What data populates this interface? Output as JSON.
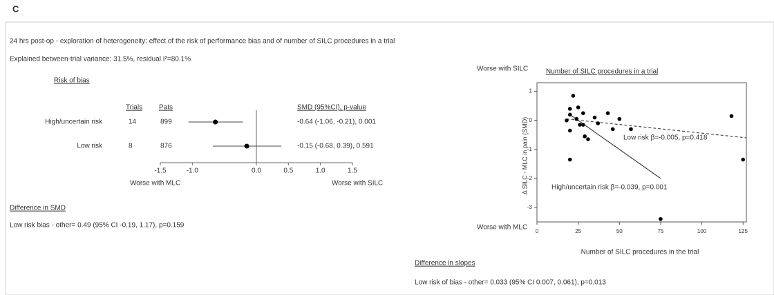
{
  "panel_label": "C",
  "heading": "24 hrs post-op - exploration of heterogeneity: effect of the risk of performance bias and of number of SILC procedures in a trial",
  "explained": "Explained between-trial variance: 31.5%, residual I²=80.1%",
  "difference_smd": {
    "title": "Difference in SMD",
    "text": "Low risk bias - other= 0.49 (95% CI -0.19, 1.17), p=0.159"
  },
  "difference_slopes": {
    "title": "Difference in slopes",
    "text": "Low risk of  bias - other= 0.033 (95% CI 0.007, 0.061), p=0.013"
  },
  "chart_data": [
    {
      "type": "forest",
      "title": "Risk of bias",
      "columns": [
        "Trials",
        "Pats"
      ],
      "result_header": "SMD (95%CI), p-value",
      "categories": [
        "High/uncertain risk",
        "Low risk"
      ],
      "trials": [
        14,
        8
      ],
      "pats": [
        899,
        876
      ],
      "values": [
        -0.64,
        -0.15
      ],
      "ci_low": [
        -1.06,
        -0.68
      ],
      "ci_high": [
        -0.21,
        0.39
      ],
      "value_labels": [
        "-0.64 (-1.06, -0.21), 0.001",
        "-0.15 (-0.68, 0.39), 0.591"
      ],
      "xlim": [
        -1.5,
        1.5
      ],
      "xticks": [
        -1.5,
        {
          "value": -1,
          "label": "-1.0"
        },
        {
          "value": 0,
          "label": "0.0"
        },
        0.5,
        {
          "value": 1,
          "label": "1.0"
        },
        1.5
      ],
      "left_label": "Worse with MLC",
      "right_label": "Worse with SILC",
      "color": "#000000"
    },
    {
      "type": "scatter",
      "title": "Number of SILC procedures in a trial",
      "xlabel": "Number of SILC procedures in the trial",
      "ylabel": "Δ SILC - MLC in pain (SMD)",
      "top_label": "Worse with SILC",
      "bottom_label": "Worse with MLC",
      "x": [
        18,
        20,
        22,
        20,
        20,
        20,
        25,
        26,
        28,
        29,
        31,
        35,
        37,
        43,
        46,
        50,
        57,
        75,
        118,
        125,
        24,
        28
      ],
      "y": [
        0,
        0.4,
        0.85,
        0.2,
        -0.35,
        -1.35,
        0.45,
        -0.15,
        -0.15,
        -0.55,
        -0.65,
        0.1,
        -0.1,
        0.25,
        -0.3,
        0.05,
        -0.3,
        -3.4,
        0.15,
        -1.35,
        0.05,
        0.25
      ],
      "xlim": [
        0,
        127
      ],
      "ylim": [
        -3.5,
        1.3
      ],
      "xticks": [
        0,
        25,
        50,
        75,
        100,
        125
      ],
      "yticks": [
        1,
        0,
        -1,
        -2,
        -3
      ],
      "color": "#000000",
      "lines": [
        {
          "name": "Low risk β=-0.005, p=0.418",
          "dashed": true,
          "x": [
            18,
            127
          ],
          "y": [
            0.05,
            -0.6
          ]
        },
        {
          "name": "High/uncertain risk β=-0.039, p=0.001",
          "dashed": false,
          "x": [
            20,
            75
          ],
          "y": [
            0.2,
            -2
          ]
        }
      ]
    }
  ]
}
